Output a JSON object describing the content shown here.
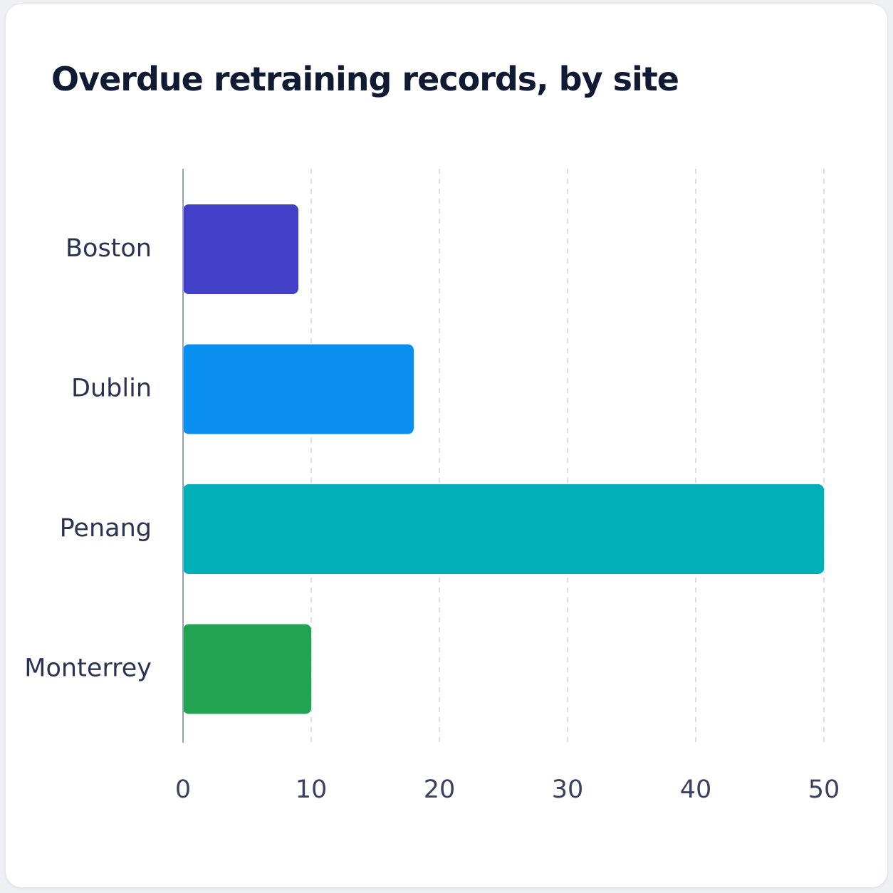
{
  "chart_data": {
    "type": "bar",
    "orientation": "horizontal",
    "title": "Overdue retraining records, by site",
    "xlabel": "",
    "ylabel": "",
    "categories": [
      "Boston",
      "Dublin",
      "Penang",
      "Monterrey"
    ],
    "values": [
      9,
      18,
      50,
      10
    ],
    "colors": [
      "#4340c8",
      "#0a8ff0",
      "#00afb8",
      "#22a352"
    ],
    "xlim": [
      0,
      50
    ],
    "xticks": [
      0,
      10,
      20,
      30,
      40,
      50
    ],
    "grid": true,
    "legend": "none"
  }
}
